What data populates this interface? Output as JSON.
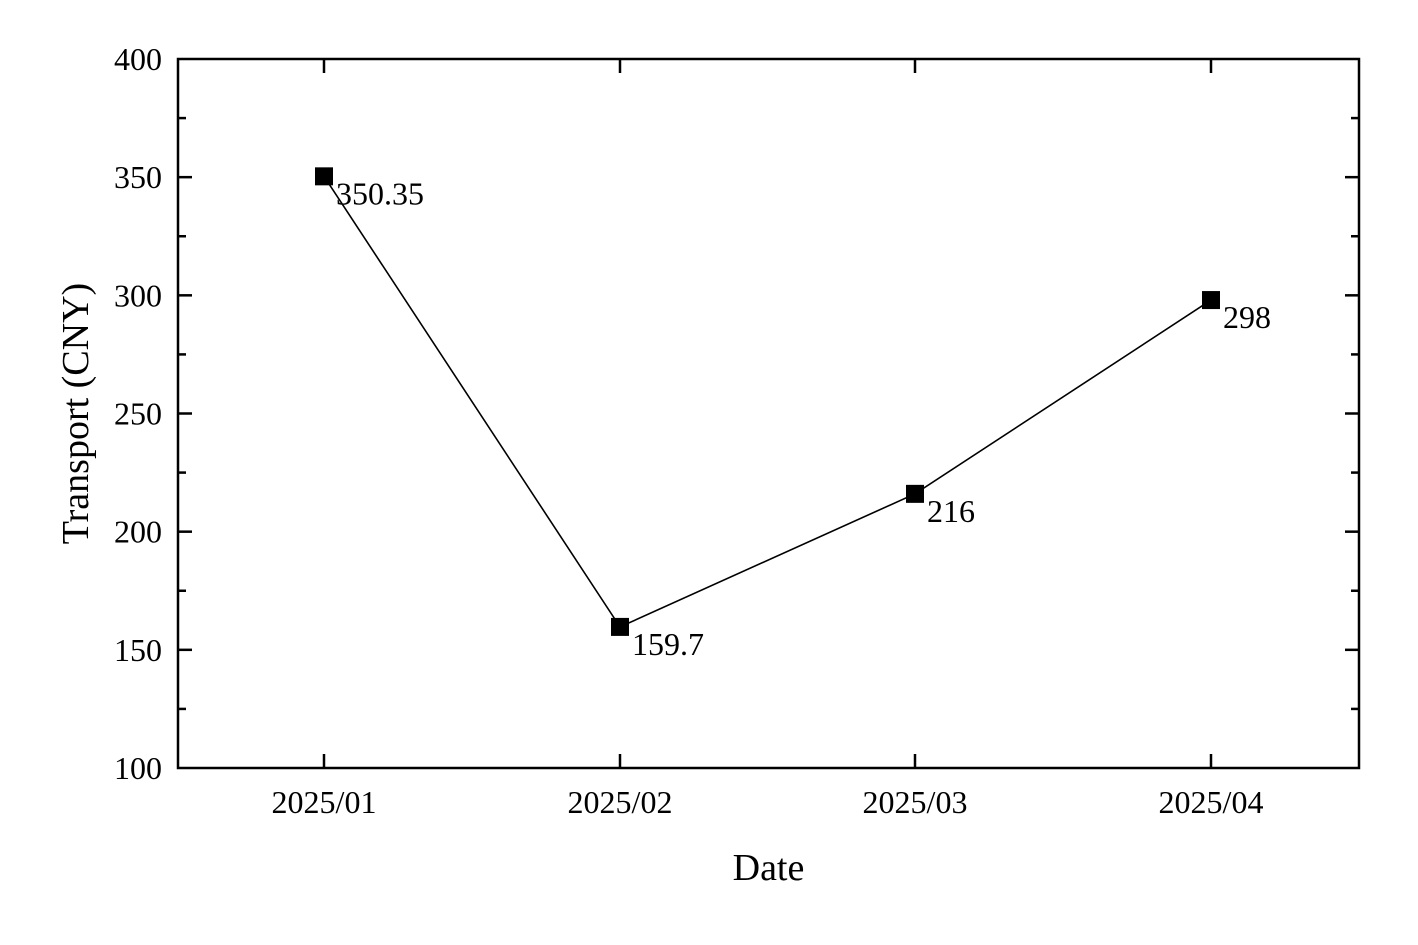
{
  "chart_data": {
    "type": "line",
    "title": "",
    "xlabel": "Date",
    "ylabel": "Transport (CNY)",
    "categories": [
      "2025/01",
      "2025/02",
      "2025/03",
      "2025/04"
    ],
    "series": [
      {
        "values": [
          350.35,
          159.7,
          216,
          298
        ],
        "data_labels": [
          "350.35",
          "159.7",
          "216",
          "298"
        ],
        "marker": "square",
        "color": "#000000"
      }
    ],
    "ylim": [
      100,
      400
    ],
    "y_ticks": [
      100,
      150,
      200,
      250,
      300,
      350,
      400
    ],
    "y_tick_labels": [
      "100",
      "150",
      "200",
      "250",
      "300",
      "350",
      "400"
    ],
    "y_minor_tick_step": 25,
    "grid": false,
    "legend": "none"
  }
}
